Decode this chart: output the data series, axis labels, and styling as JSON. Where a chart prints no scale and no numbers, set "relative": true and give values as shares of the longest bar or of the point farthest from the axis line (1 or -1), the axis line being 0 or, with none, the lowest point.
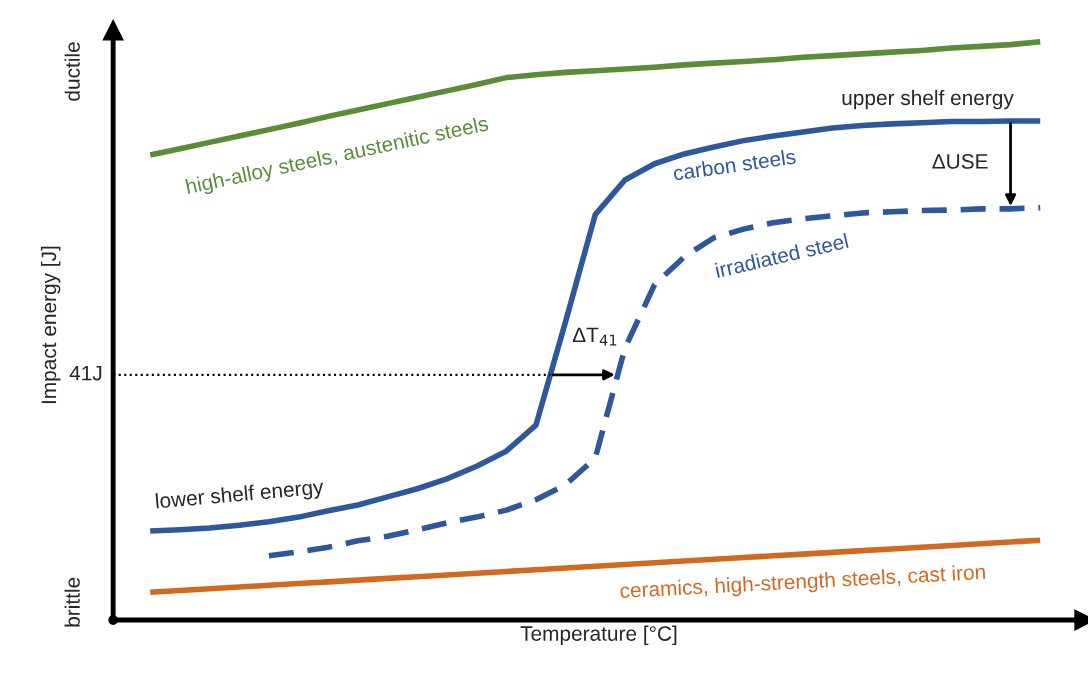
{
  "chart_data": {
    "type": "line",
    "relative": true,
    "xlabel": "Temperature [°C]",
    "ylabel": "Impact energy [J]",
    "categories": [
      null,
      null,
      null,
      null,
      null,
      null,
      null,
      null,
      null,
      null,
      null,
      null,
      null,
      null,
      null,
      null,
      null,
      null,
      null,
      null,
      null,
      null,
      null,
      null,
      null,
      null,
      null,
      null,
      null,
      null,
      null
    ],
    "series": [
      {
        "name": "high-alloy steels, austenitic steels",
        "color": "#5b8c3a",
        "line_style": "solid",
        "values": [
          0.804,
          0.815,
          0.826,
          0.837,
          0.848,
          0.859,
          0.871,
          0.882,
          0.893,
          0.904,
          0.915,
          0.926,
          0.938,
          0.943,
          0.947,
          0.95,
          0.953,
          0.956,
          0.96,
          0.963,
          0.966,
          0.969,
          0.973,
          0.976,
          0.979,
          0.982,
          0.985,
          0.989,
          0.992,
          0.995,
          1.0
        ]
      },
      {
        "name": "carbon steels",
        "color": "#2f579b",
        "line_style": "solid",
        "values": [
          0.154,
          0.156,
          0.159,
          0.164,
          0.17,
          0.178,
          0.189,
          0.199,
          0.213,
          0.227,
          0.244,
          0.266,
          0.292,
          0.337,
          0.516,
          0.701,
          0.761,
          0.789,
          0.806,
          0.818,
          0.829,
          0.837,
          0.844,
          0.851,
          0.855,
          0.858,
          0.86,
          0.862,
          0.862,
          0.863,
          0.863
        ]
      },
      {
        "name": "irradiated steel",
        "color": "#2f579b",
        "line_style": "dashed",
        "values": [
          null,
          null,
          null,
          null,
          0.111,
          0.118,
          0.126,
          0.137,
          0.145,
          0.156,
          0.168,
          0.178,
          0.19,
          0.208,
          0.234,
          0.28,
          0.47,
          0.58,
          0.628,
          0.661,
          0.676,
          0.687,
          0.694,
          0.699,
          0.704,
          0.706,
          0.708,
          0.709,
          0.711,
          0.711,
          0.713
        ]
      },
      {
        "name": "ceramics, high-strength steels, cast iron",
        "color": "#d2691e",
        "line_style": "solid",
        "values": [
          0.048,
          0.051,
          0.054,
          0.057,
          0.06,
          0.063,
          0.066,
          0.069,
          0.072,
          0.075,
          0.078,
          0.081,
          0.084,
          0.087,
          0.09,
          0.093,
          0.096,
          0.099,
          0.102,
          0.105,
          0.108,
          0.111,
          0.114,
          0.117,
          0.12,
          0.123,
          0.126,
          0.129,
          0.132,
          0.135,
          0.138
        ]
      }
    ],
    "ref_lines": [
      {
        "axis": "y",
        "value": 0.424,
        "label": "41J",
        "color": "#000000",
        "line_style": "dotted"
      }
    ],
    "annotations": [
      "upper shelf energy",
      "lower shelf energy",
      "ΔUSE",
      "ΔT$_{41}$",
      "brittle",
      "ductile"
    ],
    "legend": false
  }
}
